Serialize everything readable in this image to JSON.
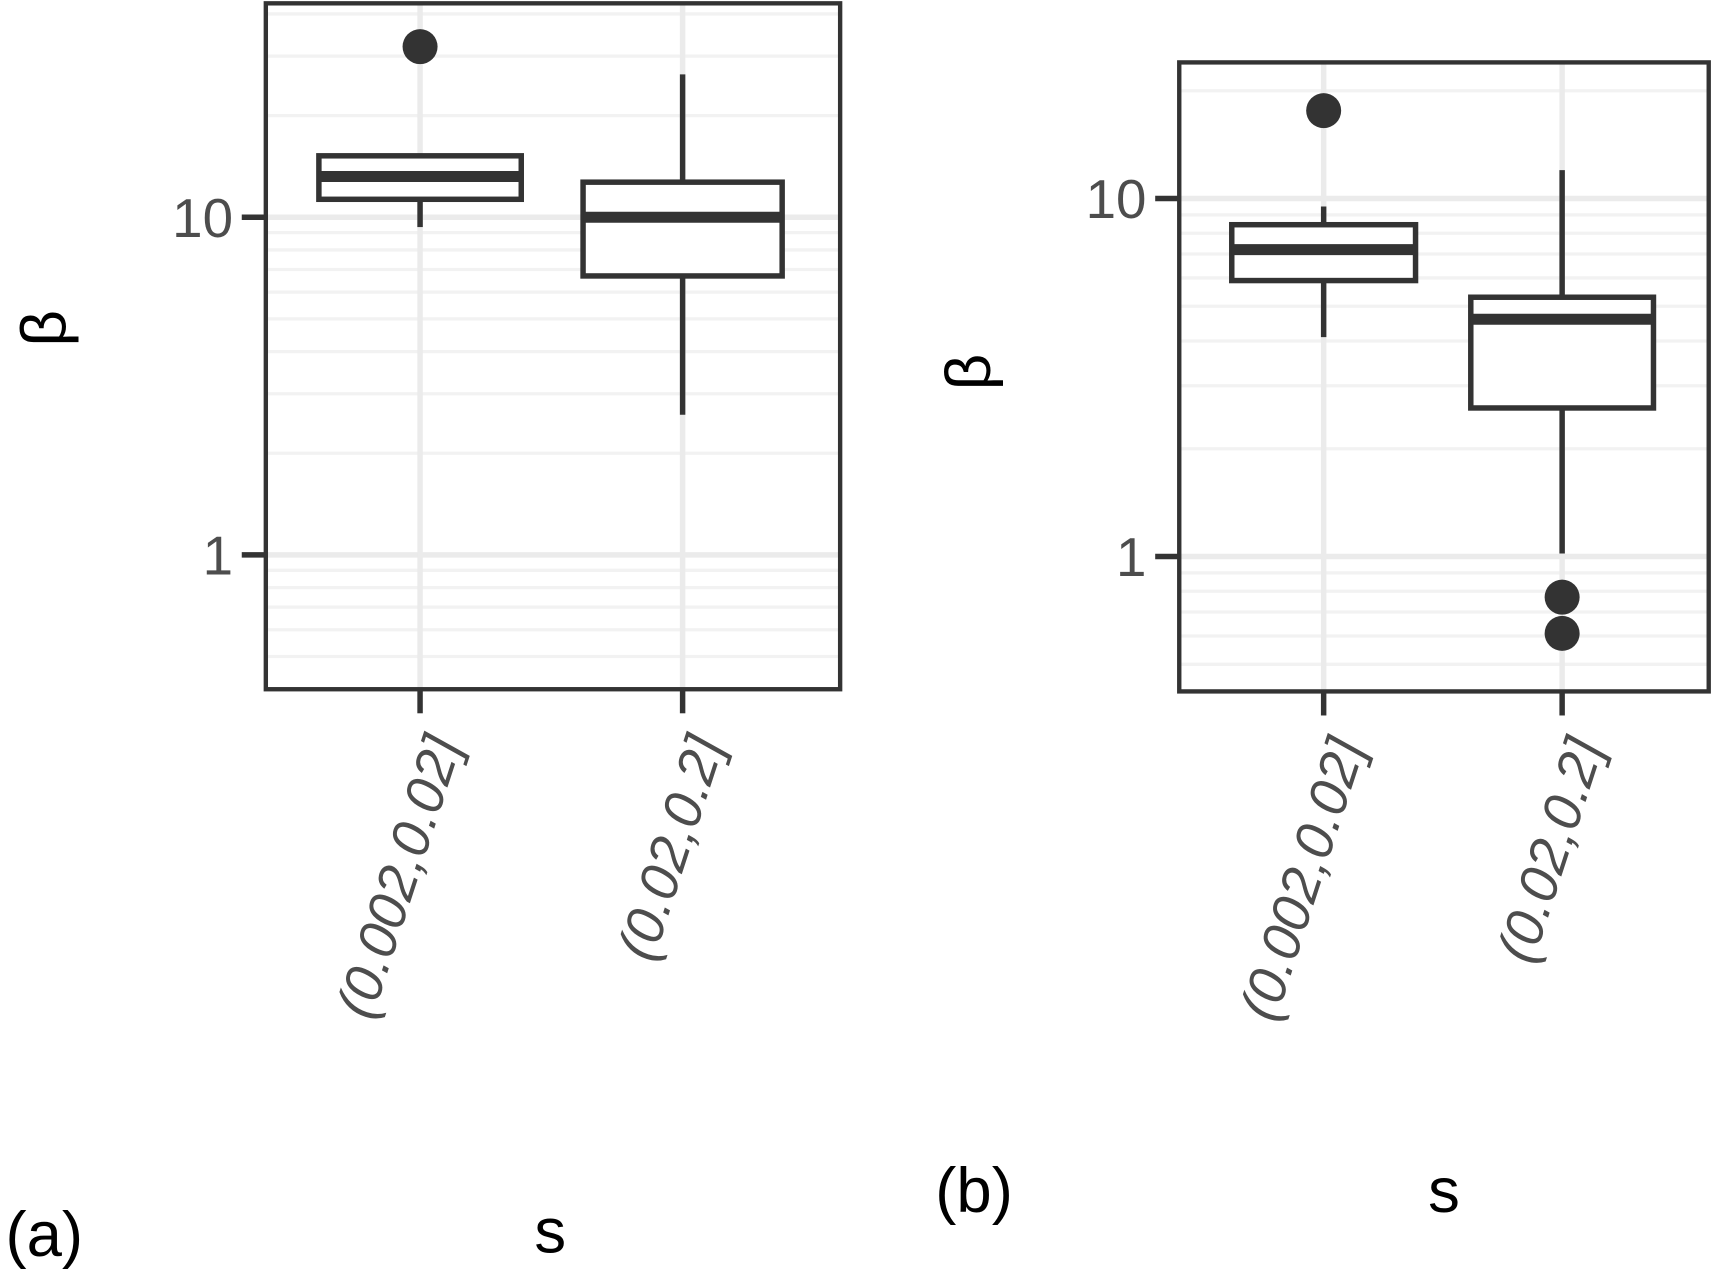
{
  "colors": {
    "box": "#333333",
    "grid_major": "#ebebeb",
    "grid_minor": "#f2f2f2",
    "frame": "#333333",
    "tick_text": "#4d4d4d"
  },
  "chart_data": [
    {
      "type": "box",
      "panel_label": "(a)",
      "xlabel": "s",
      "ylabel": "β",
      "yscale": "log",
      "ylim": [
        0.4,
        43
      ],
      "yticks": [
        1,
        10
      ],
      "ytick_labels": [
        "1",
        "10"
      ],
      "grid": true,
      "categories": [
        "(0.002,0.02]",
        "(0.02,0.2]"
      ],
      "boxes": [
        {
          "whisker_low": 9.35,
          "q1": 11.3,
          "median": 13.2,
          "q3": 15.2,
          "whisker_high": 15.2,
          "outliers": [
            32
          ]
        },
        {
          "whisker_low": 2.6,
          "q1": 6.7,
          "median": 10.0,
          "q3": 12.7,
          "whisker_high": 26.5,
          "outliers": []
        }
      ]
    },
    {
      "type": "box",
      "panel_label": "(b)",
      "xlabel": "s",
      "ylabel": "β",
      "yscale": "log",
      "ylim": [
        0.42,
        24
      ],
      "yticks": [
        1,
        10
      ],
      "ytick_labels": [
        "1",
        "10"
      ],
      "grid": true,
      "categories": [
        "(0.002,0.02]",
        "(0.02,0.2]"
      ],
      "boxes": [
        {
          "whisker_low": 4.1,
          "q1": 5.9,
          "median": 7.2,
          "q3": 8.45,
          "whisker_high": 9.5,
          "outliers": [
            17.6
          ]
        },
        {
          "whisker_low": 1.02,
          "q1": 2.6,
          "median": 4.6,
          "q3": 5.3,
          "whisker_high": 12.0,
          "outliers": [
            0.77,
            0.61
          ]
        }
      ]
    }
  ]
}
